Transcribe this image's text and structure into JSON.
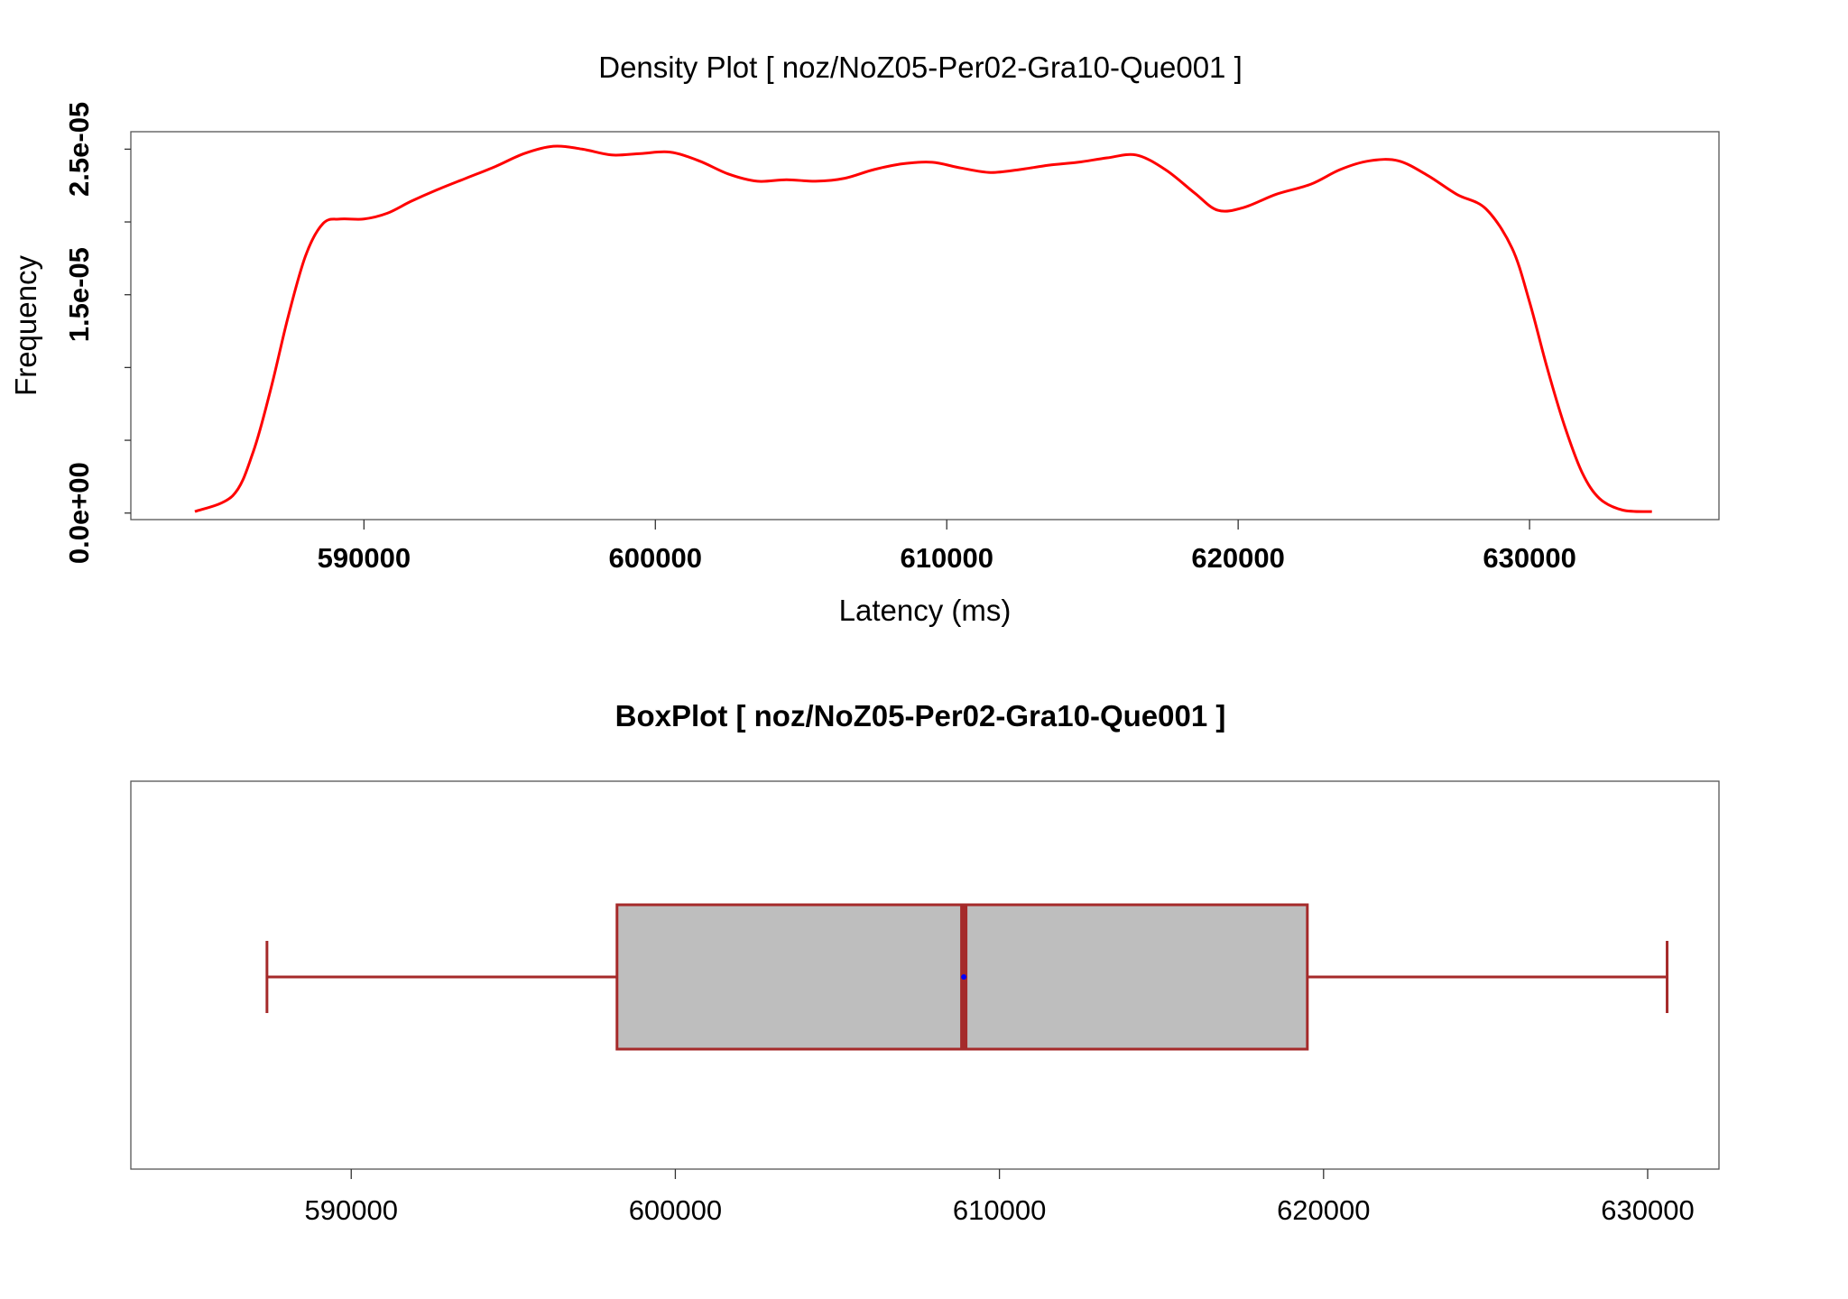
{
  "chart_data": [
    {
      "type": "line",
      "title": "Density Plot [ noz/NoZ05-Per02-Gra10-Que001 ]",
      "xlabel": "Latency (ms)",
      "ylabel": "Frequency",
      "xlim": [
        582000,
        636500
      ],
      "ylim": [
        -4.5e-07,
        2.62e-05
      ],
      "x_ticks": [
        590000,
        600000,
        610000,
        620000,
        630000
      ],
      "x_tick_labels": [
        "590000",
        "600000",
        "610000",
        "620000",
        "630000"
      ],
      "y_ticks": [
        0.0,
        5e-06,
        1e-05,
        1.5e-05,
        2e-05,
        2.5e-05
      ],
      "y_tick_labels": [
        "0.0e+00",
        "1.5e-05",
        "2.5e-05"
      ],
      "y_tick_label_values": [
        0.0,
        1.5e-05,
        2.5e-05
      ],
      "grid": false,
      "color": "#ff0000",
      "series": [
        {
          "x": [
            584200,
            585500,
            586200,
            586800,
            587400,
            588000,
            588600,
            589200,
            590000,
            590800,
            591600,
            592500,
            593500,
            594500,
            595500,
            596500,
            597500,
            598500,
            599500,
            600500,
            601500,
            602500,
            603500,
            604500,
            605500,
            606500,
            607500,
            608500,
            609500,
            610500,
            611500,
            612500,
            613500,
            614500,
            615500,
            616500,
            617500,
            618500,
            619300,
            620200,
            621300,
            622500,
            623500,
            624500,
            625500,
            626500,
            627500,
            628500,
            629400,
            630000,
            630600,
            631200,
            631800,
            632400,
            633200,
            634200
          ],
          "y": [
            1e-07,
            1.2e-06,
            4.2e-06,
            8.5e-06,
            1.35e-05,
            1.77e-05,
            1.99e-05,
            2.02e-05,
            2.02e-05,
            2.06e-05,
            2.14e-05,
            2.22e-05,
            2.3e-05,
            2.38e-05,
            2.47e-05,
            2.52e-05,
            2.5e-05,
            2.46e-05,
            2.47e-05,
            2.48e-05,
            2.42e-05,
            2.33e-05,
            2.28e-05,
            2.29e-05,
            2.28e-05,
            2.3e-05,
            2.36e-05,
            2.4e-05,
            2.41e-05,
            2.37e-05,
            2.34e-05,
            2.36e-05,
            2.39e-05,
            2.41e-05,
            2.44e-05,
            2.46e-05,
            2.36e-05,
            2.2e-05,
            2.08e-05,
            2.1e-05,
            2.19e-05,
            2.26e-05,
            2.36e-05,
            2.42e-05,
            2.42e-05,
            2.32e-05,
            2.19e-05,
            2.09e-05,
            1.82e-05,
            1.45e-05,
            1e-05,
            6e-06,
            2.8e-06,
            1e-06,
            2e-07,
            1e-07
          ]
        }
      ]
    },
    {
      "type": "box",
      "title": "BoxPlot [ noz/NoZ05-Per02-Gra10-Que001 ]",
      "orientation": "horizontal",
      "xlim": [
        583200,
        632200
      ],
      "x_ticks": [
        590000,
        600000,
        610000,
        620000,
        630000
      ],
      "x_tick_labels": [
        "590000",
        "600000",
        "610000",
        "620000",
        "630000"
      ],
      "whisker_low": 587400,
      "q1": 598200,
      "median": 608900,
      "mean": 608900,
      "q3": 619500,
      "whisker_high": 630600,
      "box_fill": "#bebebe",
      "line_color": "#a52a2a",
      "mean_color": "#0000ff"
    }
  ]
}
